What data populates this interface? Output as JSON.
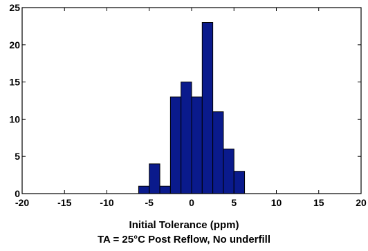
{
  "chart_data": {
    "type": "bar",
    "xlabel": "Initial Tolerance (ppm)",
    "subtitle": "TA  = 25°C Post Reflow, No underfill",
    "xlim": [
      -20,
      20
    ],
    "ylim": [
      0,
      25
    ],
    "xticks": [
      -20,
      -15,
      -10,
      -5,
      0,
      5,
      10,
      15,
      20
    ],
    "yticks": [
      0,
      5,
      10,
      15,
      20,
      25
    ],
    "bin_width": 1.25,
    "bins": [
      {
        "x0": -6.25,
        "x1": -5.0,
        "count": 1
      },
      {
        "x0": -5.0,
        "x1": -3.75,
        "count": 4
      },
      {
        "x0": -3.75,
        "x1": -2.5,
        "count": 1
      },
      {
        "x0": -2.5,
        "x1": -1.25,
        "count": 13
      },
      {
        "x0": -1.25,
        "x1": 0.0,
        "count": 15
      },
      {
        "x0": 0.0,
        "x1": 1.25,
        "count": 13
      },
      {
        "x0": 1.25,
        "x1": 2.5,
        "count": 23
      },
      {
        "x0": 2.5,
        "x1": 3.75,
        "count": 11
      },
      {
        "x0": 3.75,
        "x1": 5.0,
        "count": 6
      },
      {
        "x0": 5.0,
        "x1": 6.25,
        "count": 3
      }
    ],
    "grid": false,
    "colors": {
      "bar_fill": "#0a1a8c",
      "bar_edge": "#000000",
      "axis": "#000000"
    }
  }
}
